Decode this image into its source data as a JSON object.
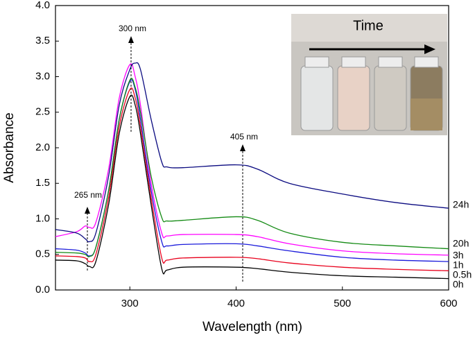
{
  "chart_data": {
    "type": "line",
    "x_label": "Wavelength (nm)",
    "y_label": "Absorbance",
    "x": [
      230,
      250,
      258,
      262,
      268,
      280,
      290,
      300,
      305,
      310,
      320,
      330,
      335,
      350,
      400,
      420,
      450,
      500,
      550,
      600
    ],
    "series": [
      {
        "name": "0h",
        "color": "#000000",
        "values": [
          0.42,
          0.41,
          0.37,
          0.33,
          0.4,
          1.2,
          2.2,
          2.72,
          2.6,
          2.2,
          1.2,
          0.3,
          0.28,
          0.32,
          0.32,
          0.3,
          0.25,
          0.2,
          0.18,
          0.16
        ]
      },
      {
        "name": "0.5h",
        "color": "#e8001c",
        "values": [
          0.48,
          0.47,
          0.45,
          0.4,
          0.5,
          1.3,
          2.3,
          2.82,
          2.7,
          2.3,
          1.3,
          0.45,
          0.42,
          0.45,
          0.46,
          0.44,
          0.38,
          0.32,
          0.29,
          0.27
        ]
      },
      {
        "name": "1h",
        "color": "#1a1adb",
        "values": [
          0.58,
          0.56,
          0.52,
          0.48,
          0.6,
          1.4,
          2.4,
          2.93,
          2.82,
          2.4,
          1.4,
          0.68,
          0.62,
          0.64,
          0.65,
          0.62,
          0.55,
          0.46,
          0.42,
          0.4
        ]
      },
      {
        "name": "3h",
        "color": "#ff00ff",
        "values": [
          0.75,
          0.82,
          0.9,
          0.88,
          0.95,
          1.7,
          2.7,
          3.17,
          3.0,
          2.6,
          1.5,
          0.8,
          0.76,
          0.78,
          0.78,
          0.75,
          0.65,
          0.55,
          0.51,
          0.49
        ]
      },
      {
        "name": "20h",
        "color": "#138a13",
        "values": [
          0.53,
          0.52,
          0.5,
          0.47,
          0.6,
          1.4,
          2.4,
          2.95,
          2.85,
          2.5,
          1.6,
          1.02,
          0.97,
          0.98,
          1.03,
          0.98,
          0.8,
          0.67,
          0.62,
          0.58
        ]
      },
      {
        "name": "24h",
        "color": "#0a0a80",
        "values": [
          0.85,
          0.8,
          0.72,
          0.68,
          0.8,
          1.6,
          2.6,
          3.1,
          3.19,
          3.1,
          2.4,
          1.8,
          1.73,
          1.72,
          1.76,
          1.7,
          1.5,
          1.35,
          1.23,
          1.15
        ]
      }
    ],
    "xlim": [
      230,
      600
    ],
    "xticks": [
      300,
      400,
      500,
      600
    ],
    "ylim": [
      0,
      4
    ],
    "yticks": [
      {
        "value": 0,
        "label": "0.0"
      },
      0.5,
      {
        "value": 1,
        "label": "1.0"
      },
      1.5,
      {
        "value": 2,
        "label": "2.0"
      },
      2.5,
      {
        "value": 3,
        "label": "3.0"
      },
      3.5,
      {
        "value": 4,
        "label": "4.0"
      }
    ],
    "annotations": [
      "300 nm",
      "405 nm",
      "265 nm"
    ],
    "inset_title": "Time"
  }
}
